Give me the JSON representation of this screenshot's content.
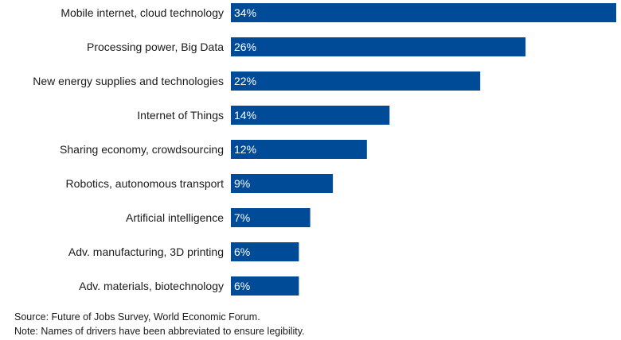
{
  "chart_data": {
    "type": "bar",
    "orientation": "horizontal",
    "categories": [
      "Mobile internet, cloud technology",
      "Processing power, Big Data",
      "New energy supplies and technologies",
      "Internet of Things",
      "Sharing economy, crowdsourcing",
      "Robotics, autonomous transport",
      "Artificial intelligence",
      "Adv. manufacturing, 3D printing",
      "Adv. materials, biotechnology"
    ],
    "values": [
      34,
      26,
      22,
      14,
      12,
      9,
      7,
      6,
      6
    ],
    "value_labels": [
      "34%",
      "26%",
      "22%",
      "14%",
      "12%",
      "9%",
      "7%",
      "6%",
      "6%"
    ],
    "unit": "%",
    "xlim": [
      0,
      34
    ],
    "grid": false,
    "legend": "none",
    "colors": {
      "bar": "#004b97"
    }
  },
  "footnotes": {
    "source": "Source: Future of Jobs Survey, World Economic Forum.",
    "note": "Note: Names of drivers have been abbreviated to ensure legibility."
  }
}
